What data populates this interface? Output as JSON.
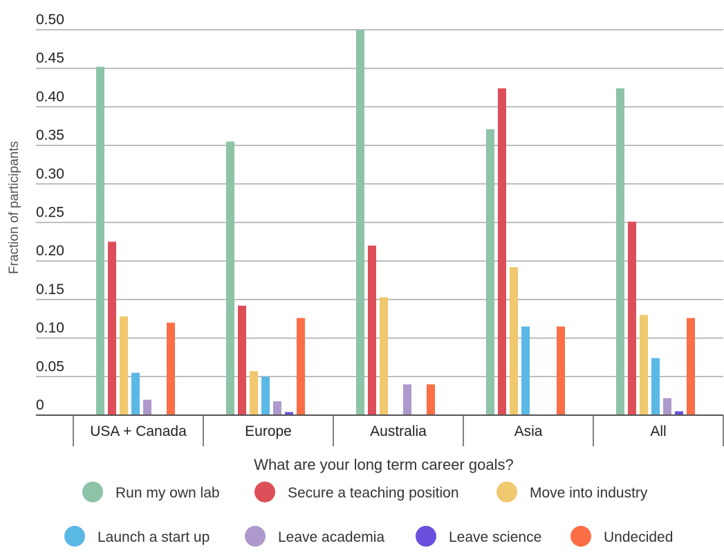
{
  "chart_data": {
    "type": "bar",
    "title": "",
    "xlabel": "What are your long term career goals?",
    "ylabel": "Fraction of participants",
    "ylim": [
      0,
      0.5
    ],
    "yticks": [
      {
        "value": 0,
        "label": "0"
      },
      {
        "value": 0.05,
        "label": "0.05"
      },
      {
        "value": 0.1,
        "label": "0.10"
      },
      {
        "value": 0.15,
        "label": "0.15"
      },
      {
        "value": 0.2,
        "label": "0.20"
      },
      {
        "value": 0.25,
        "label": "0.25"
      },
      {
        "value": 0.3,
        "label": "0.30"
      },
      {
        "value": 0.35,
        "label": "0.35"
      },
      {
        "value": 0.4,
        "label": "0.40"
      },
      {
        "value": 0.45,
        "label": "0.45"
      },
      {
        "value": 0.5,
        "label": "0.50"
      }
    ],
    "grid": true,
    "legend_position": "bottom",
    "categories": [
      "USA + Canada",
      "Europe",
      "Australia",
      "Asia",
      "All"
    ],
    "series": [
      {
        "name": "Run my own lab",
        "color": "#8dc3a7",
        "values": [
          0.452,
          0.355,
          0.5,
          0.371,
          0.424
        ]
      },
      {
        "name": "Secure a teaching position",
        "color": "#dc4f58",
        "values": [
          0.225,
          0.142,
          0.22,
          0.424,
          0.251
        ]
      },
      {
        "name": "Move into industry",
        "color": "#f0c86e",
        "values": [
          0.128,
          0.057,
          0.153,
          0.192,
          0.13
        ]
      },
      {
        "name": "Launch a start up",
        "color": "#5ab8e5",
        "values": [
          0.055,
          0.05,
          0,
          0.115,
          0.074
        ]
      },
      {
        "name": "Leave academia",
        "color": "#ad99cc",
        "values": [
          0.02,
          0.018,
          0.04,
          0,
          0.022
        ]
      },
      {
        "name": "Leave science",
        "color": "#6a4fdc",
        "values": [
          0,
          0.004,
          0,
          0,
          0.005
        ]
      },
      {
        "name": "Undecided",
        "color": "#fc6e45",
        "values": [
          0.12,
          0.126,
          0.04,
          0.115,
          0.126
        ]
      }
    ]
  }
}
